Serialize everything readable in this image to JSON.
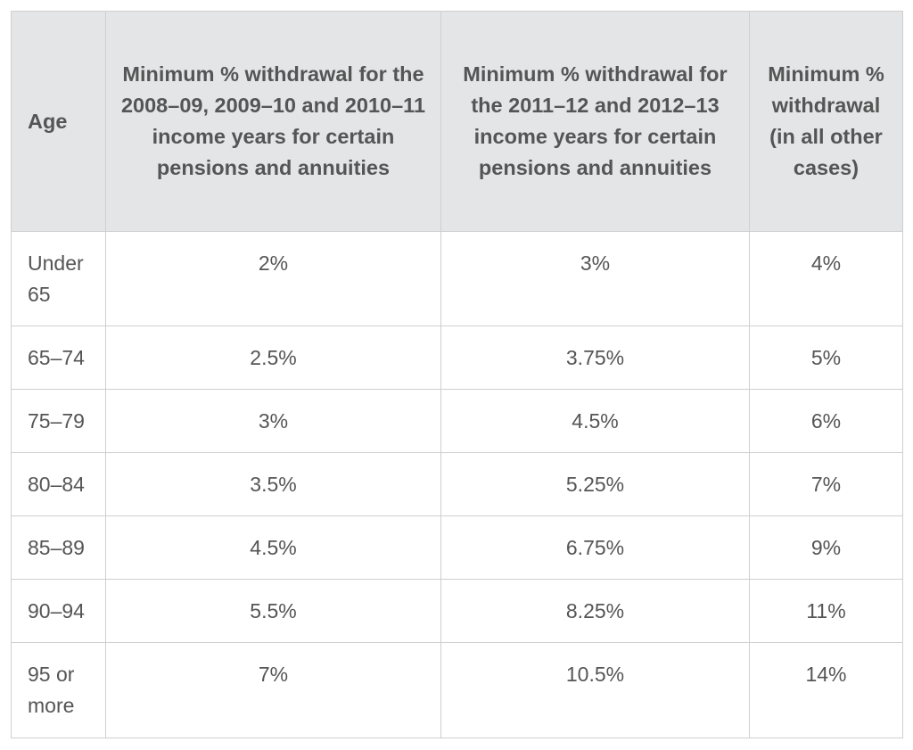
{
  "table": {
    "headers": [
      "Age",
      "Minimum % withdrawal for the 2008–09, 2009–10 and 2010–11 income years for certain pensions and annuities",
      "Minimum % withdrawal for the 2011–12 and 2012–13 income years for certain pensions and annuities",
      "Minimum % withdrawal (in all other cases)"
    ],
    "rows": [
      [
        "Under 65",
        "2%",
        "3%",
        "4%"
      ],
      [
        "65–74",
        "2.5%",
        "3.75%",
        "5%"
      ],
      [
        "75–79",
        "3%",
        "4.5%",
        "6%"
      ],
      [
        "80–84",
        "3.5%",
        "5.25%",
        "7%"
      ],
      [
        "85–89",
        "4.5%",
        "6.75%",
        "9%"
      ],
      [
        "90–94",
        "5.5%",
        "8.25%",
        "11%"
      ],
      [
        "95 or more",
        "7%",
        "10.5%",
        "14%"
      ]
    ]
  },
  "colors": {
    "header_bg": "#e3e5e6",
    "border": "#cfcfcf",
    "text": "#555555"
  }
}
